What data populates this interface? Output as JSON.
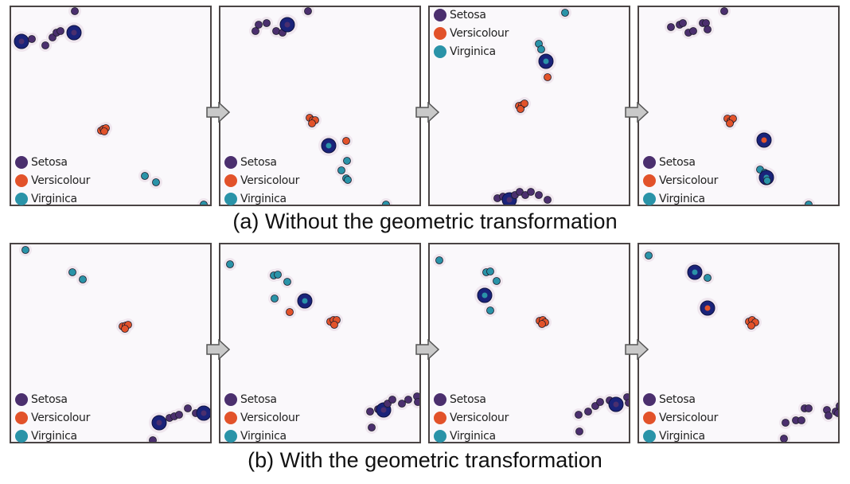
{
  "colors": {
    "setosa": "#4b2f6e",
    "versicolour": "#e2522a",
    "virginica": "#2a93a8",
    "highlight": "#1a237a"
  },
  "legend": [
    {
      "label": "Setosa",
      "color": "#4b2f6e"
    },
    {
      "label": "Versicolour",
      "color": "#e2522a"
    },
    {
      "label": "Virginica",
      "color": "#2a93a8"
    }
  ],
  "captions": {
    "a": "(a) Without the geometric transformation",
    "b": "(b) With the geometric transformation"
  },
  "arrow_icon": "right-arrow-icon"
}
